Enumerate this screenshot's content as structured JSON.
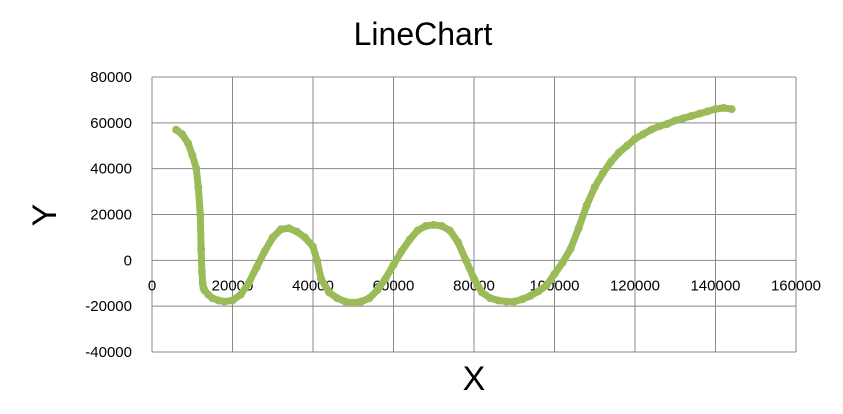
{
  "chart_data": {
    "type": "line",
    "title": "LineChart",
    "xlabel": "X",
    "ylabel": "Y",
    "xlim": [
      0,
      160000
    ],
    "ylim": [
      -40000,
      80000
    ],
    "xticks": [
      0,
      20000,
      40000,
      60000,
      80000,
      100000,
      120000,
      140000,
      160000
    ],
    "yticks": [
      -40000,
      -20000,
      0,
      20000,
      40000,
      60000,
      80000
    ],
    "xtick_labels": [
      "0",
      "20000",
      "40000",
      "60000",
      "80000",
      "100000",
      "120000",
      "140000",
      "160000"
    ],
    "ytick_labels": [
      "-40000",
      "-20000",
      "0",
      "20000",
      "40000",
      "60000",
      "80000"
    ],
    "grid": true,
    "legend": "none",
    "series": [
      {
        "color": "#9bbb59",
        "x": [
          6000,
          7500,
          9000,
          10000,
          11000,
          11500,
          12000,
          12200,
          12400,
          12600,
          12800,
          13000,
          14000,
          15000,
          16500,
          18000,
          20000,
          22000,
          24000,
          26000,
          28000,
          30000,
          32000,
          34000,
          36000,
          38000,
          40000,
          41000,
          42000,
          44000,
          46000,
          48000,
          50000,
          52000,
          54000,
          56000,
          58000,
          60000,
          62000,
          64000,
          66000,
          68000,
          70000,
          72000,
          74000,
          76000,
          78000,
          80000,
          82000,
          84000,
          86000,
          88000,
          90000,
          92000,
          94000,
          96000,
          98000,
          100000,
          102000,
          104000,
          106000,
          108000,
          110000,
          112000,
          114000,
          116000,
          118000,
          120000,
          122000,
          124000,
          126000,
          128000,
          130000,
          132000,
          134000,
          136000,
          138000,
          140000,
          142000,
          144000
        ],
        "y": [
          57000,
          55000,
          51000,
          46000,
          40000,
          32000,
          20000,
          5000,
          -5000,
          -10000,
          -12000,
          -13000,
          -15000,
          -16500,
          -17500,
          -18000,
          -17500,
          -15000,
          -10000,
          -3000,
          4000,
          10000,
          13500,
          14000,
          12500,
          10000,
          6000,
          0,
          -8000,
          -14000,
          -16500,
          -18000,
          -18500,
          -18000,
          -16500,
          -13000,
          -8000,
          -2000,
          4000,
          9000,
          13000,
          15000,
          15500,
          15000,
          13000,
          8000,
          0,
          -8000,
          -14000,
          -16500,
          -17500,
          -18000,
          -18000,
          -17000,
          -15500,
          -13500,
          -11000,
          -6000,
          -1000,
          5000,
          14000,
          24000,
          32000,
          38000,
          43000,
          47000,
          50000,
          53000,
          55000,
          57000,
          58500,
          59500,
          61000,
          62000,
          63000,
          64000,
          65000,
          66000,
          66500,
          66000
        ]
      }
    ]
  }
}
